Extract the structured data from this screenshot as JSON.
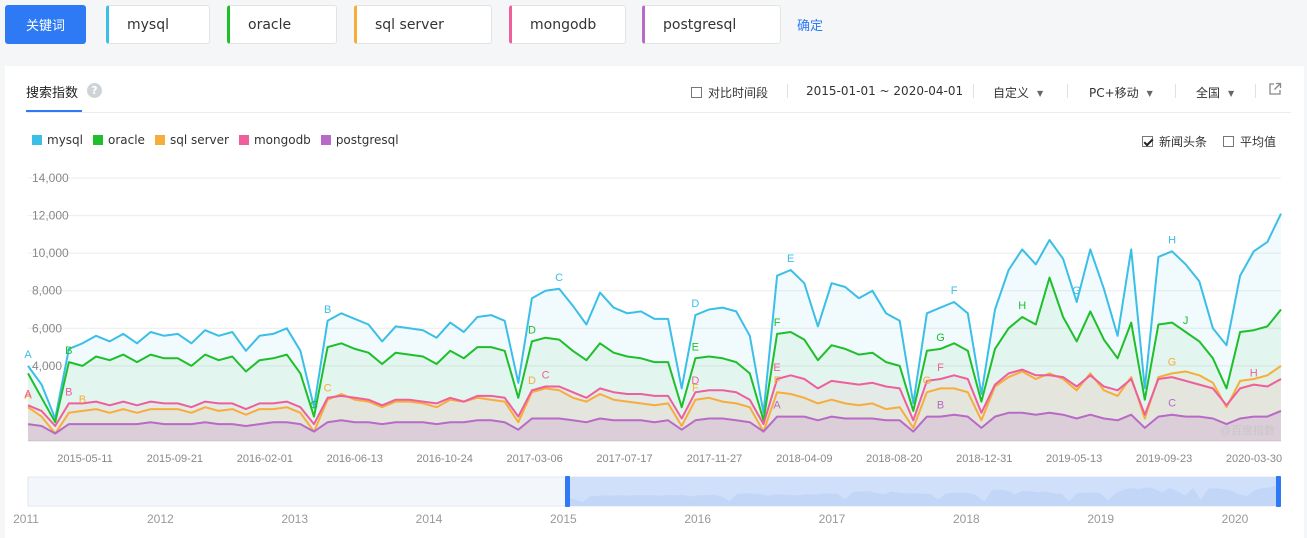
{
  "topbar": {
    "keyword_button": "关键词",
    "keywords": [
      {
        "label": "mysql",
        "color": "#3bbfe6"
      },
      {
        "label": "oracle",
        "color": "#1fbf2c"
      },
      {
        "label": "sql server",
        "color": "#f7ad3b"
      },
      {
        "label": "mongodb",
        "color": "#ee5f9b"
      },
      {
        "label": "postgresql",
        "color": "#b76ac7"
      }
    ],
    "confirm": "确定"
  },
  "panel": {
    "tab": "搜索指数",
    "help_icon": "help-icon",
    "compare_label": "对比时间段",
    "date_range": "2015-01-01 ~ 2020-04-01",
    "custom": "自定义",
    "device": "PC+移动",
    "region": "全国",
    "export_icon": "external-link-icon",
    "news_label": "新闻头条",
    "news_checked": true,
    "avg_label": "平均值",
    "avg_checked": false,
    "watermark": "@百度指数"
  },
  "chart_data": {
    "type": "area",
    "yticks": [
      "14,000",
      "12,000",
      "10,000",
      "8,000",
      "6,000",
      "4,000"
    ],
    "ylim": [
      0,
      14000
    ],
    "xticks": [
      "2015-05-11",
      "2015-09-21",
      "2016-02-01",
      "2016-06-13",
      "2016-10-24",
      "2017-03-06",
      "2017-07-17",
      "2017-11-27",
      "2018-04-09",
      "2018-08-20",
      "2018-12-31",
      "2019-05-13",
      "2019-09-23",
      "2020-03-30"
    ],
    "series": [
      {
        "name": "mysql",
        "color": "#3bbfe6",
        "values": [
          4000,
          3000,
          1200,
          4900,
          5200,
          5600,
          5300,
          5700,
          5200,
          5800,
          5600,
          5700,
          5200,
          5900,
          5600,
          5800,
          4800,
          5600,
          5700,
          6000,
          4800,
          1800,
          6400,
          6800,
          6500,
          6200,
          5300,
          6100,
          6000,
          5900,
          5500,
          6300,
          5800,
          6600,
          6700,
          6400,
          3100,
          7600,
          8000,
          8100,
          7200,
          6200,
          7900,
          7100,
          6800,
          6900,
          6500,
          6500,
          2800,
          6700,
          7000,
          7100,
          6900,
          5600,
          1500,
          8800,
          9100,
          8400,
          6100,
          8400,
          8200,
          7600,
          8000,
          6800,
          6400,
          2000,
          6800,
          7100,
          7400,
          6800,
          2500,
          7000,
          9100,
          10200,
          9400,
          10700,
          9700,
          7400,
          10200,
          8100,
          5600,
          10200,
          2800,
          9800,
          10100,
          9400,
          8500,
          6000,
          5100,
          8800,
          10100,
          10600,
          12100
        ]
      },
      {
        "name": "oracle",
        "color": "#1fbf2c",
        "values": [
          3600,
          2300,
          1000,
          4200,
          4000,
          4500,
          4300,
          4600,
          4200,
          4600,
          4400,
          4400,
          4000,
          4600,
          4300,
          4500,
          3700,
          4300,
          4400,
          4600,
          3600,
          1300,
          5000,
          5200,
          4900,
          4700,
          4100,
          4700,
          4600,
          4500,
          4100,
          4800,
          4400,
          5000,
          5000,
          4800,
          2300,
          5300,
          5500,
          5400,
          4800,
          4300,
          5200,
          4700,
          4500,
          4400,
          4200,
          4200,
          1800,
          4400,
          4500,
          4400,
          4200,
          3600,
          1100,
          5700,
          5800,
          5400,
          4300,
          5100,
          4900,
          4600,
          4700,
          4200,
          4000,
          1600,
          4800,
          4900,
          5200,
          4800,
          2100,
          4900,
          6000,
          6600,
          6200,
          8700,
          6600,
          5300,
          6900,
          5400,
          4400,
          6300,
          2200,
          6200,
          6300,
          5800,
          5300,
          4400,
          2800,
          5800,
          5900,
          6100,
          7000
        ]
      },
      {
        "name": "sql server",
        "color": "#f7ad3b",
        "values": [
          1800,
          1300,
          400,
          1500,
          1600,
          1700,
          1500,
          1700,
          1500,
          1700,
          1700,
          1700,
          1500,
          1800,
          1600,
          1700,
          1400,
          1700,
          1700,
          1800,
          1500,
          500,
          2200,
          2500,
          2200,
          2100,
          1800,
          2100,
          2100,
          2000,
          1800,
          2200,
          2100,
          2300,
          2200,
          2100,
          1000,
          2600,
          2800,
          2700,
          2300,
          2100,
          2500,
          2200,
          2100,
          2000,
          1900,
          2000,
          800,
          2200,
          2300,
          2100,
          2000,
          1800,
          500,
          2600,
          2500,
          2300,
          2000,
          2200,
          2000,
          1900,
          2000,
          1700,
          1800,
          700,
          2600,
          2800,
          2800,
          2600,
          1100,
          2900,
          3400,
          3700,
          3300,
          3600,
          3300,
          2700,
          3600,
          2700,
          2400,
          3400,
          1200,
          3400,
          3600,
          3700,
          3500,
          3100,
          1800,
          3200,
          3300,
          3500,
          4000
        ]
      },
      {
        "name": "mongodb",
        "color": "#ee5f9b",
        "values": [
          1900,
          1600,
          800,
          2000,
          2000,
          2100,
          1900,
          2100,
          1900,
          2100,
          2000,
          2000,
          1800,
          2100,
          2000,
          2000,
          1700,
          2000,
          2000,
          2100,
          1800,
          900,
          2300,
          2400,
          2300,
          2200,
          1900,
          2200,
          2200,
          2100,
          2000,
          2300,
          2100,
          2400,
          2400,
          2300,
          1300,
          2700,
          2900,
          2900,
          2600,
          2300,
          2800,
          2600,
          2500,
          2500,
          2400,
          2400,
          1200,
          2600,
          2700,
          2700,
          2600,
          2200,
          900,
          3300,
          3500,
          3300,
          2800,
          3200,
          3100,
          3000,
          3100,
          2900,
          2800,
          1100,
          3200,
          3300,
          3500,
          3300,
          1500,
          3000,
          3600,
          3800,
          3500,
          3500,
          3400,
          2900,
          3500,
          2900,
          2700,
          3300,
          1400,
          3300,
          3400,
          3200,
          3000,
          2800,
          1900,
          2800,
          3000,
          2900,
          3300
        ]
      },
      {
        "name": "postgresql",
        "color": "#b76ac7",
        "values": [
          900,
          800,
          400,
          900,
          900,
          900,
          900,
          900,
          900,
          1000,
          900,
          900,
          900,
          1000,
          900,
          900,
          800,
          900,
          1000,
          1000,
          900,
          500,
          1000,
          1100,
          1000,
          1000,
          900,
          1000,
          1000,
          1000,
          900,
          1000,
          1000,
          1100,
          1100,
          1000,
          600,
          1200,
          1200,
          1200,
          1100,
          1000,
          1200,
          1100,
          1100,
          1100,
          1000,
          1100,
          600,
          1100,
          1200,
          1200,
          1100,
          1000,
          500,
          1300,
          1300,
          1300,
          1100,
          1300,
          1200,
          1200,
          1200,
          1100,
          1100,
          500,
          1300,
          1300,
          1400,
          1300,
          700,
          1300,
          1500,
          1500,
          1400,
          1500,
          1400,
          1200,
          1400,
          1200,
          1100,
          1400,
          700,
          1300,
          1400,
          1300,
          1300,
          1200,
          900,
          1200,
          1300,
          1300,
          1600
        ]
      }
    ],
    "annotations": [
      {
        "letter": "A",
        "series": 0,
        "i": 0
      },
      {
        "letter": "A",
        "series": 2,
        "i": 0
      },
      {
        "letter": "A",
        "series": 3,
        "i": 0
      },
      {
        "letter": "B",
        "series": 1,
        "i": 3
      },
      {
        "letter": "B",
        "series": 2,
        "i": 4
      },
      {
        "letter": "B",
        "series": 3,
        "i": 3
      },
      {
        "letter": "B",
        "series": 0,
        "i": 22
      },
      {
        "letter": "C",
        "series": 1,
        "i": 21
      },
      {
        "letter": "C",
        "series": 2,
        "i": 22
      },
      {
        "letter": "C",
        "series": 0,
        "i": 39
      },
      {
        "letter": "D",
        "series": 1,
        "i": 37
      },
      {
        "letter": "D",
        "series": 2,
        "i": 37
      },
      {
        "letter": "C",
        "series": 3,
        "i": 38
      },
      {
        "letter": "D",
        "series": 0,
        "i": 49
      },
      {
        "letter": "E",
        "series": 1,
        "i": 49
      },
      {
        "letter": "D",
        "series": 3,
        "i": 49
      },
      {
        "letter": "F",
        "series": 2,
        "i": 49
      },
      {
        "letter": "E",
        "series": 0,
        "i": 56
      },
      {
        "letter": "F",
        "series": 1,
        "i": 55
      },
      {
        "letter": "E",
        "series": 3,
        "i": 55
      },
      {
        "letter": "F",
        "series": 2,
        "i": 55
      },
      {
        "letter": "A",
        "series": 4,
        "i": 55
      },
      {
        "letter": "F",
        "series": 0,
        "i": 68
      },
      {
        "letter": "G",
        "series": 1,
        "i": 67
      },
      {
        "letter": "F",
        "series": 3,
        "i": 67
      },
      {
        "letter": "G",
        "series": 2,
        "i": 66
      },
      {
        "letter": "B",
        "series": 4,
        "i": 67
      },
      {
        "letter": "G",
        "series": 0,
        "i": 77
      },
      {
        "letter": "H",
        "series": 1,
        "i": 73
      },
      {
        "letter": "H",
        "series": 0,
        "i": 84
      },
      {
        "letter": "J",
        "series": 1,
        "i": 85
      },
      {
        "letter": "G",
        "series": 2,
        "i": 84
      },
      {
        "letter": "C",
        "series": 4,
        "i": 84
      },
      {
        "letter": "H",
        "series": 3,
        "i": 90
      }
    ],
    "navigator": {
      "years": [
        "2011",
        "2012",
        "2013",
        "2014",
        "2015",
        "2016",
        "2017",
        "2018",
        "2019",
        "2020"
      ],
      "selected": [
        "2015",
        "2020"
      ]
    }
  }
}
